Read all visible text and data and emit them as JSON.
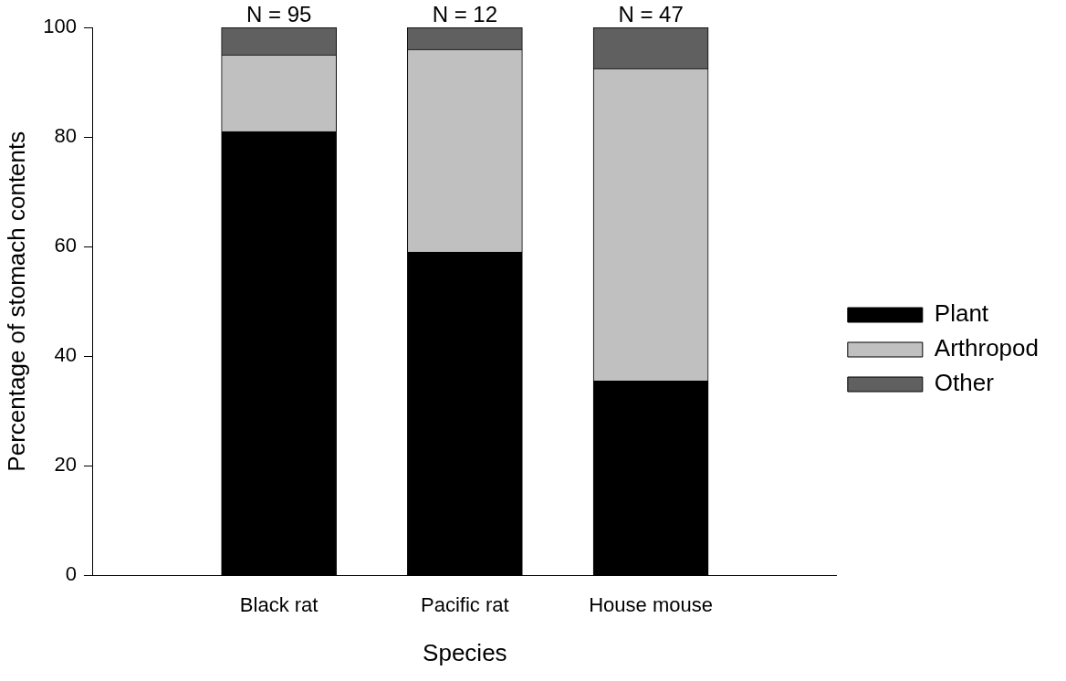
{
  "chart_data": {
    "type": "bar",
    "stacked": true,
    "xlabel": "Species",
    "ylabel": "Percentage of stomach contents",
    "categories": [
      "Black rat",
      "Pacific rat",
      "House mouse"
    ],
    "series": [
      {
        "name": "Plant",
        "color": "#000000",
        "values": [
          81,
          59,
          35.5
        ]
      },
      {
        "name": "Arthropod",
        "color": "#c0c0c0",
        "values": [
          14,
          37,
          57
        ]
      },
      {
        "name": "Other",
        "color": "#606060",
        "values": [
          5,
          4,
          7.5
        ]
      }
    ],
    "ylim": [
      0,
      100
    ],
    "yticks": [
      0,
      20,
      40,
      60,
      80,
      100
    ],
    "grid": false,
    "legend": "right",
    "annotations": [
      {
        "text": "N = 95",
        "x": "Black rat",
        "y": 100
      },
      {
        "text": "N = 12",
        "x": "Pacific rat",
        "y": 100
      },
      {
        "text": "N = 47",
        "x": "House mouse",
        "y": 100
      }
    ]
  }
}
